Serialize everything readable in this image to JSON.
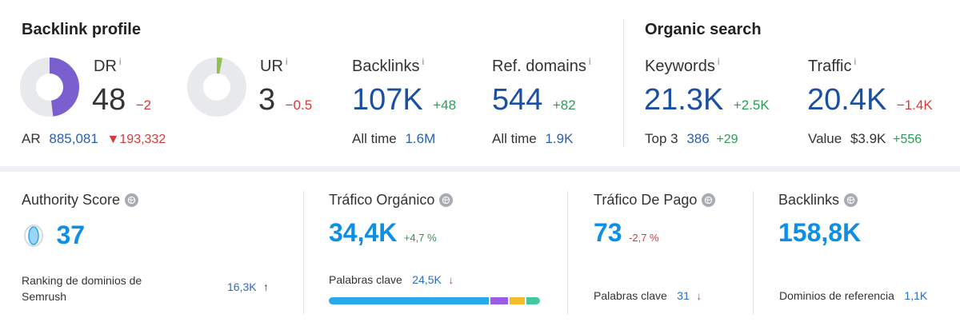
{
  "backlink_profile": {
    "title": "Backlink profile",
    "dr": {
      "label": "DR",
      "info": "i",
      "value": "48",
      "delta": "−2",
      "ring_fraction": 0.48,
      "ring_color": "#7b5fcf"
    },
    "ur": {
      "label": "UR",
      "info": "i",
      "value": "3",
      "delta": "−0.5",
      "ring_fraction": 0.03,
      "ring_color": "#8fc24a"
    },
    "ar": {
      "label": "AR",
      "value": "885,081",
      "delta": "193,332"
    },
    "backlinks": {
      "label": "Backlinks",
      "info": "i",
      "value": "107K",
      "delta": "+48",
      "alltime_label": "All time",
      "alltime_value": "1.6M"
    },
    "ref_domains": {
      "label": "Ref. domains",
      "info": "i",
      "value": "544",
      "delta": "+82",
      "alltime_label": "All time",
      "alltime_value": "1.9K"
    }
  },
  "organic_search": {
    "title": "Organic search",
    "keywords": {
      "label": "Keywords",
      "info": "i",
      "value": "21.3K",
      "delta": "+2.5K",
      "sub_label": "Top 3",
      "sub_value": "386",
      "sub_delta": "+29"
    },
    "traffic": {
      "label": "Traffic",
      "info": "i",
      "value": "20.4K",
      "delta": "−1.4K",
      "sub_label": "Value",
      "sub_value": "$3.9K",
      "sub_delta": "+556"
    }
  },
  "semrush": {
    "authority": {
      "label": "Authority Score",
      "value": "37",
      "sub_label": "Ranking de dominios de Semrush",
      "sub_value": "16,3K"
    },
    "organic": {
      "label": "Tráfico Orgánico",
      "value": "34,4K",
      "delta": "+4,7 %",
      "sub_label": "Palabras clave",
      "sub_value": "24,5K",
      "bar_segments": [
        {
          "fraction": 0.76,
          "color": "#2aa8ec"
        },
        {
          "fraction": 0.09,
          "color": "#9b5de5"
        },
        {
          "fraction": 0.08,
          "color": "#f4bc2c"
        },
        {
          "fraction": 0.07,
          "color": "#43c7a0"
        }
      ]
    },
    "paid": {
      "label": "Tráfico De Pago",
      "value": "73",
      "delta": "-2,7 %",
      "sub_label": "Palabras clave",
      "sub_value": "31"
    },
    "backlinks": {
      "label": "Backlinks",
      "value": "158,8K",
      "sub_label": "Dominios de referencia",
      "sub_value": "1,1K"
    }
  },
  "colors": {
    "purple_ring": "#7b5fcf",
    "green_ring": "#8fc24a",
    "ring_bg": "#e8e9ed",
    "blue": "#1a4fa3",
    "bright_blue": "#0d8fe6"
  }
}
